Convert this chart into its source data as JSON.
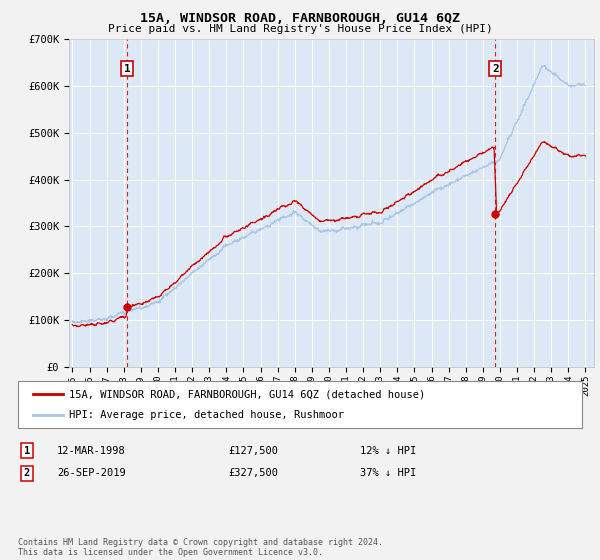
{
  "title": "15A, WINDSOR ROAD, FARNBOROUGH, GU14 6QZ",
  "subtitle": "Price paid vs. HM Land Registry's House Price Index (HPI)",
  "legend_line1": "15A, WINDSOR ROAD, FARNBOROUGH, GU14 6QZ (detached house)",
  "legend_line2": "HPI: Average price, detached house, Rushmoor",
  "annotation1_label": "1",
  "annotation1_date": "12-MAR-1998",
  "annotation1_price": "£127,500",
  "annotation1_hpi": "12% ↓ HPI",
  "annotation1_year": 1998.21,
  "annotation1_value": 127500,
  "annotation2_label": "2",
  "annotation2_date": "26-SEP-2019",
  "annotation2_price": "£327,500",
  "annotation2_hpi": "37% ↓ HPI",
  "annotation2_year": 2019.73,
  "annotation2_value": 327500,
  "hpi_color": "#aac4e4",
  "price_color": "#cc0000",
  "dashed_color": "#cc0000",
  "fig_bg_color": "#f2f2f2",
  "plot_bg_color": "#dce8f5",
  "grid_color": "#ffffff",
  "footer": "Contains HM Land Registry data © Crown copyright and database right 2024.\nThis data is licensed under the Open Government Licence v3.0.",
  "ylim": [
    0,
    700000
  ],
  "yticks": [
    0,
    100000,
    200000,
    300000,
    400000,
    500000,
    600000,
    700000
  ],
  "ytick_labels": [
    "£0",
    "£100K",
    "£200K",
    "£300K",
    "£400K",
    "£500K",
    "£600K",
    "£700K"
  ],
  "xlim_start": 1994.8,
  "xlim_end": 2025.5
}
